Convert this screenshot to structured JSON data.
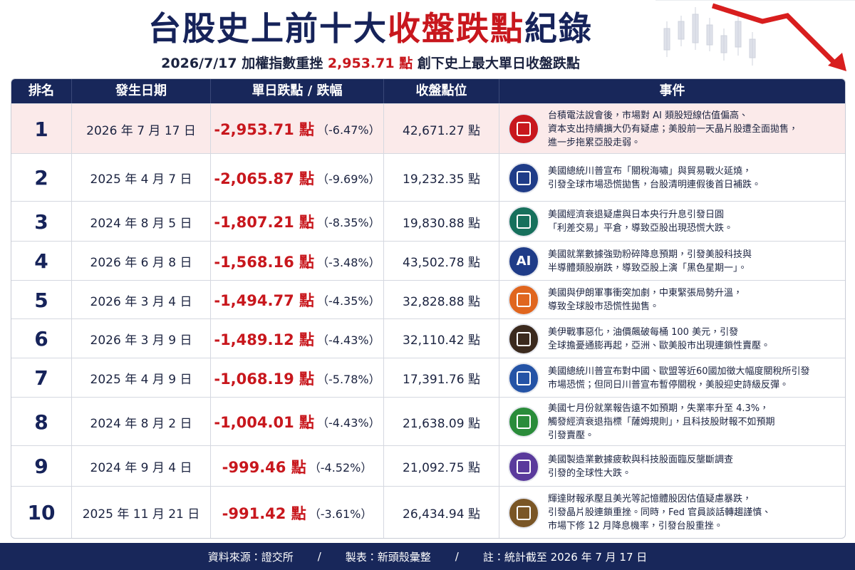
{
  "header": {
    "title": [
      "台股史上前十大",
      "收盤跌點",
      "紀錄"
    ],
    "subtitle": [
      "2026/7/17 加權指數重挫",
      "2,953.71 點",
      "創下史上最大單日收盤跌點"
    ]
  },
  "table": {
    "columns": [
      "排名",
      "發生日期",
      "單日跌點 / 跌幅",
      "收盤點位",
      "事件"
    ],
    "rows": [
      {
        "rank": 1,
        "date": "2026 年 7 月 17 日",
        "drop": "-2,953.71 點",
        "change": "（-6.47%）",
        "close": "42,671.27 點",
        "event": [
          "台積電法說會後，市場對 AI 類股短線估值偏高、",
          "資本支出持續擴大仍有疑慮；美股前一天晶片股遭全面拋售，",
          "進一步拖累亞股走弱。"
        ]
      },
      {
        "rank": 2,
        "date": "2025 年 4 月 7 日",
        "drop": "-2,065.87 點",
        "change": "（-9.69%）",
        "close": "19,232.35 點",
        "event": [
          "美國總統川普宣布「關稅海嘯」與貿易戰火延燒，",
          "引發全球市場恐慌拋售，台股清明連假後首日補跌。"
        ]
      },
      {
        "rank": 3,
        "date": "2024 年 8 月 5 日",
        "drop": "-1,807.21 點",
        "change": "（-8.35%）",
        "close": "19,830.88 點",
        "event": [
          "美國經濟衰退疑慮與日本央行升息引發日圓",
          "「利差交易」平倉，導致亞股出現恐慌大跌。"
        ]
      },
      {
        "rank": 4,
        "date": "2026 年 6 月 8 日",
        "drop": "-1,568.16 點",
        "change": "（-3.48%）",
        "close": "43,502.78 點",
        "icon_text": "AI",
        "event": [
          "美國就業數據強勁粉碎降息預期，引發美股科技與",
          "半導體類股崩跌，導致亞股上演「黑色星期一」。"
        ]
      },
      {
        "rank": 5,
        "date": "2026 年 3 月 4 日",
        "drop": "-1,494.77 點",
        "change": "（-4.35%）",
        "close": "32,828.88 點",
        "event": [
          "美國與伊朗軍事衝突加劇，中東緊張局勢升溫，",
          "導致全球股市恐慌性拋售。"
        ]
      },
      {
        "rank": 6,
        "date": "2026 年 3 月 9 日",
        "drop": "-1,489.12 點",
        "change": "（-4.43%）",
        "close": "32,110.42 點",
        "event": [
          "美伊戰事惡化，油價飆破每桶 100 美元，引發",
          "全球擔憂通膨再起，亞洲、歐美股市出現連鎖性賣壓。"
        ]
      },
      {
        "rank": 7,
        "date": "2025 年 4 月 9 日",
        "drop": "-1,068.19 點",
        "change": "（-5.78%）",
        "close": "17,391.76 點",
        "event": [
          "美國總統川普宣布對中國、歐盟等近60國加徵大幅度關稅所引發",
          "市場恐慌；但同日川普宣布暫停關稅，美股迎史詩級反彈。"
        ]
      },
      {
        "rank": 8,
        "date": "2024 年 8 月 2 日",
        "drop": "-1,004.01 點",
        "change": "（-4.43%）",
        "close": "21,638.09 點",
        "event": [
          "美國七月份就業報告遠不如預期，失業率升至 4.3%，",
          "觸發經濟衰退指標「薩姆規則」，且科技股財報不如預期",
          "引發賣壓。"
        ]
      },
      {
        "rank": 9,
        "date": "2024 年 9 月 4 日",
        "drop": "-999.46 點",
        "change": "（-4.52%）",
        "close": "21,092.75 點",
        "event": [
          "美國製造業數據疲軟與科技股面臨反壟斷調查",
          "引發的全球性大跌。"
        ]
      },
      {
        "rank": 10,
        "date": "2025 年 11 月 21 日",
        "drop": "-991.42 點",
        "change": "（-3.61%）",
        "close": "26,434.94 點",
        "event": [
          "輝達財報承壓且美光等記憶體股因估值疑慮暴跌，",
          "引發晶片股連鎖重挫。同時，Fed 官員談話轉趨謹慎、",
          "市場下修 12 月降息機率，引發台股重挫。"
        ]
      }
    ]
  },
  "footer": {
    "source": "資料來源：證交所",
    "separator": "/",
    "maker": "製表：新頭殼彙整",
    "note": "註：統計截至 2026 年 7 月 17 日"
  }
}
